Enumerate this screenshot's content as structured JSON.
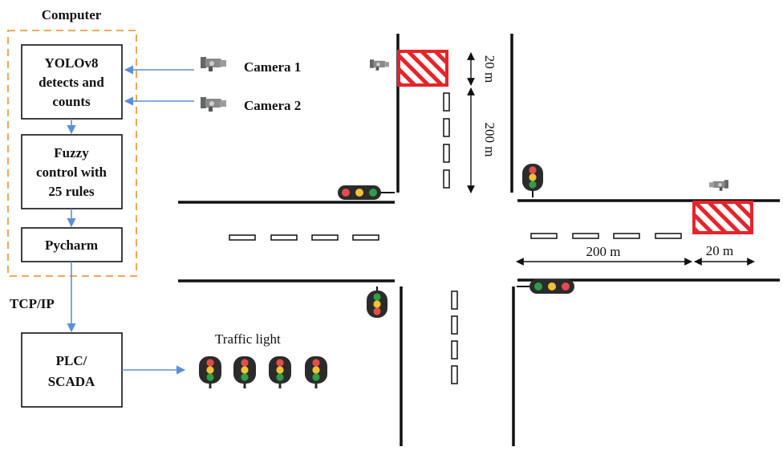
{
  "computer": {
    "title": "Computer",
    "yolo_lines": [
      "YOLOv8",
      "detects and",
      "counts"
    ],
    "fuzzy_lines": [
      "Fuzzy",
      "control with",
      "25 rules"
    ],
    "pycharm": "Pycharm"
  },
  "cameras": [
    "Camera 1",
    "Camera 2"
  ],
  "link_label": "TCP/IP",
  "plc_lines": [
    "PLC/",
    "SCADA"
  ],
  "traffic_light_label": "Traffic light",
  "distances": {
    "north_zone": "20 m",
    "north_approach": "200 m",
    "east_approach": "200 m",
    "east_zone": "20 m"
  },
  "colors": {
    "arrow": "#5b8fd6",
    "dashed_border": "#f2a65a",
    "zone": "#e8232a",
    "light_red": "#e84b4b",
    "light_yellow": "#f2c230",
    "light_green": "#2e9e47"
  }
}
